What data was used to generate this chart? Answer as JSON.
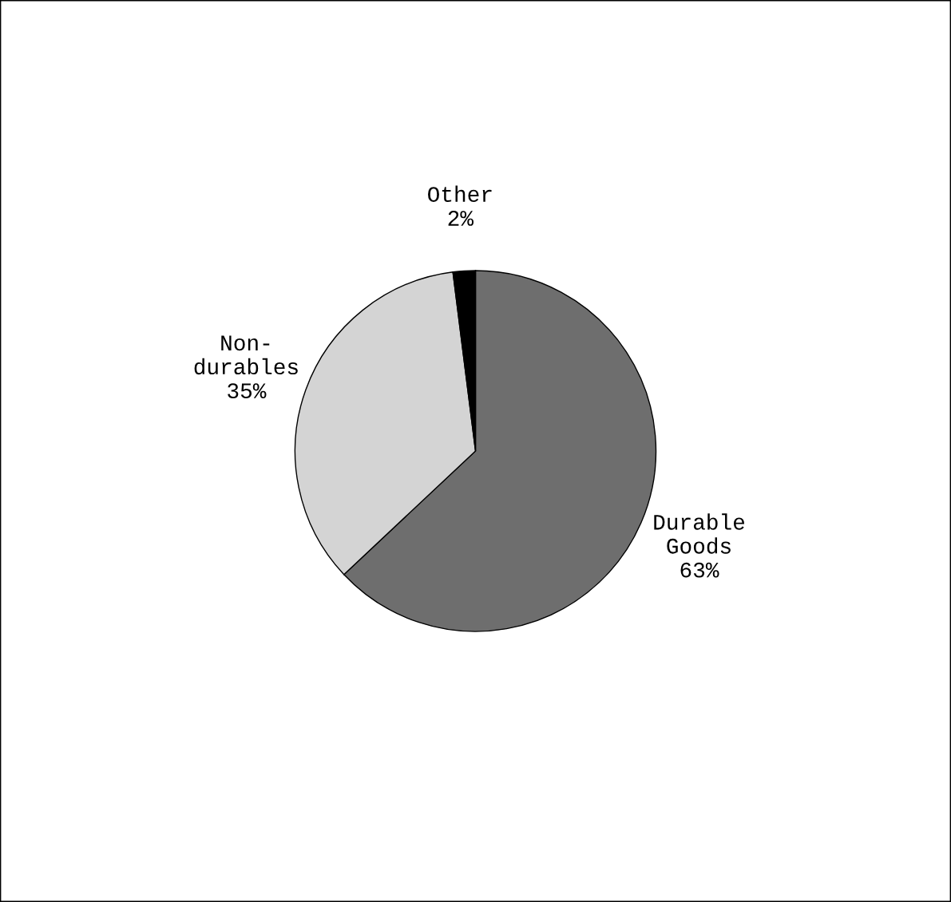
{
  "chart_data": {
    "type": "pie",
    "categories": [
      "Durable\nGoods",
      "Non-\ndurables",
      "Other"
    ],
    "values": [
      63,
      35,
      2
    ],
    "value_labels": [
      "63%",
      "35%",
      "2%"
    ],
    "colors": [
      "#6e6e6e",
      "#d4d4d4",
      "#000000"
    ],
    "legend": false
  }
}
